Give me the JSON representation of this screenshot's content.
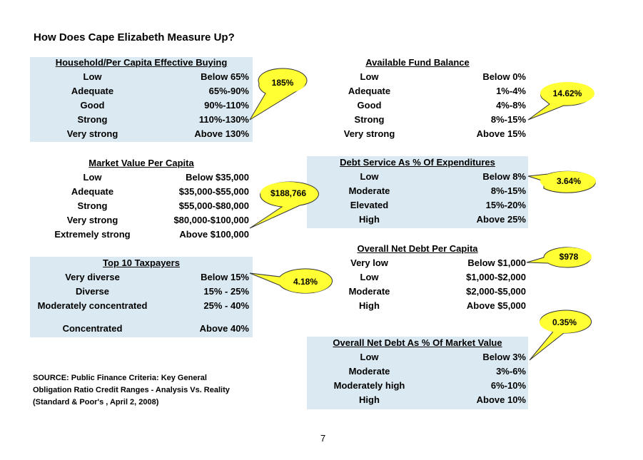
{
  "page_title": "How Does Cape Elizabeth Measure Up?",
  "panels": {
    "household": {
      "title": "Household/Per Capita Effective Buying",
      "rows": [
        {
          "label": "Low",
          "range": "Below 65%"
        },
        {
          "label": "Adequate",
          "range": "65%-90%"
        },
        {
          "label": "Good",
          "range": "90%-110%"
        },
        {
          "label": "Strong",
          "range": "110%-130%"
        },
        {
          "label": "Very strong",
          "range": "Above 130%"
        }
      ],
      "callout": "185%"
    },
    "fund_balance": {
      "title": "Available Fund Balance",
      "rows": [
        {
          "label": "Low",
          "range": "Below 0%"
        },
        {
          "label": "Adequate",
          "range": "1%-4%"
        },
        {
          "label": "Good",
          "range": "4%-8%"
        },
        {
          "label": "Strong",
          "range": "8%-15%"
        },
        {
          "label": "Very strong",
          "range": "Above 15%"
        }
      ],
      "callout": "14.62%"
    },
    "market_value": {
      "title": "Market Value Per Capita",
      "rows": [
        {
          "label": "Low",
          "range": "Below $35,000"
        },
        {
          "label": "Adequate",
          "range": "$35,000-$55,000"
        },
        {
          "label": "Strong",
          "range": "$55,000-$80,000"
        },
        {
          "label": "Very strong",
          "range": "$80,000-$100,000"
        },
        {
          "label": "Extremely strong",
          "range": "Above $100,000"
        }
      ],
      "callout": "$188,766"
    },
    "debt_service": {
      "title": "Debt Service As % Of Expenditures",
      "rows": [
        {
          "label": "Low",
          "range": "Below 8%"
        },
        {
          "label": "Moderate",
          "range": "8%-15%"
        },
        {
          "label": "Elevated",
          "range": "15%-20%"
        },
        {
          "label": "High",
          "range": "Above 25%"
        }
      ],
      "callout": "3.64%"
    },
    "taxpayers": {
      "title": "Top 10 Taxpayers",
      "rows": [
        {
          "label": "Very diverse",
          "range": "Below 15%"
        },
        {
          "label": "Diverse",
          "range": "15% - 25%"
        },
        {
          "label": "Moderately concentrated",
          "range": "25% - 40%"
        },
        {
          "label": "Concentrated",
          "range": "Above 40%"
        }
      ],
      "callout": "4.18%"
    },
    "net_debt_capita": {
      "title": "Overall Net Debt Per Capita",
      "rows": [
        {
          "label": "Very low",
          "range": "Below $1,000"
        },
        {
          "label": "Low",
          "range": "$1,000-$2,000"
        },
        {
          "label": "Moderate",
          "range": "$2,000-$5,000"
        },
        {
          "label": "High",
          "range": "Above $5,000"
        }
      ],
      "callout": "$978"
    },
    "net_debt_market": {
      "title": "Overall Net Debt As % Of Market Value",
      "rows": [
        {
          "label": "Low",
          "range": "Below 3%"
        },
        {
          "label": "Moderate",
          "range": "3%-6%"
        },
        {
          "label": "Moderately high",
          "range": "6%-10%"
        },
        {
          "label": "High",
          "range": "Above 10%"
        }
      ],
      "callout": "0.35%"
    }
  },
  "source_lines": [
    "SOURCE: Public Finance Criteria: Key General",
    "Obligation Ratio Credit Ranges - Analysis Vs. Reality",
    "(Standard & Poor's , April 2, 2008)"
  ],
  "page_number": "7",
  "colors": {
    "panel_fill": "#dbeaf2",
    "callout_fill": "#ffff33",
    "callout_stroke": "#333333"
  }
}
